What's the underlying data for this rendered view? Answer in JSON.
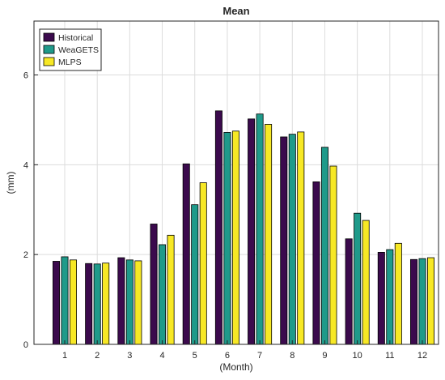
{
  "chart_data": {
    "type": "bar",
    "title": "Mean",
    "xlabel": "(Month)",
    "ylabel": "(mm)",
    "categories": [
      "1",
      "2",
      "3",
      "4",
      "5",
      "6",
      "7",
      "8",
      "9",
      "10",
      "11",
      "12"
    ],
    "series": [
      {
        "name": "Historical",
        "color": "#3b0a4d",
        "values": [
          1.85,
          1.8,
          1.93,
          2.68,
          4.02,
          5.2,
          5.02,
          4.62,
          3.62,
          2.35,
          2.05,
          1.89
        ]
      },
      {
        "name": "WeaGETS",
        "color": "#1f9a8a",
        "values": [
          1.95,
          1.79,
          1.88,
          2.22,
          3.11,
          4.72,
          5.13,
          4.68,
          4.39,
          2.92,
          2.11,
          1.91
        ]
      },
      {
        "name": "MLPS",
        "color": "#f7e825",
        "values": [
          1.88,
          1.81,
          1.86,
          2.43,
          3.6,
          4.75,
          4.9,
          4.73,
          3.97,
          2.76,
          2.25,
          1.93
        ]
      }
    ],
    "ylim": [
      0,
      7.2
    ],
    "yticks": [
      0,
      2,
      4,
      6
    ],
    "grid": true,
    "legend_position": "top-left"
  }
}
